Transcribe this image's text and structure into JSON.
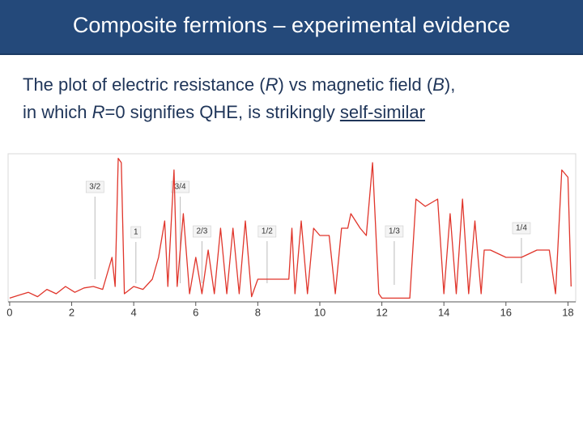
{
  "header": {
    "title": "Composite fermions – experimental evidence"
  },
  "body": {
    "lines": [
      [
        {
          "text": "The plot of electric resistance ("
        },
        {
          "text": "R",
          "italic": true
        },
        {
          "text": ") vs magnetic field ("
        },
        {
          "text": "B",
          "italic": true
        },
        {
          "text": "),"
        }
      ],
      [
        {
          "text": "in which "
        },
        {
          "text": "R",
          "italic": true
        },
        {
          "text": "=0 signifies QHE, is strikingly "
        },
        {
          "text": "self-similar",
          "underline": true
        }
      ]
    ]
  },
  "chart_data": {
    "type": "line",
    "x": [
      0,
      0.3,
      0.6,
      0.9,
      1.2,
      1.5,
      1.8,
      2.1,
      2.4,
      2.7,
      3.0,
      3.3,
      3.4,
      3.5,
      3.6,
      3.7,
      4.0,
      4.3,
      4.6,
      4.8,
      5.0,
      5.1,
      5.3,
      5.4,
      5.6,
      5.8,
      6.0,
      6.2,
      6.4,
      6.6,
      6.8,
      7.0,
      7.2,
      7.4,
      7.6,
      7.8,
      8.0,
      8.5,
      9.0,
      9.1,
      9.2,
      9.4,
      9.6,
      9.8,
      10.0,
      10.3,
      10.5,
      10.7,
      10.9,
      11.0,
      11.3,
      11.5,
      11.7,
      11.9,
      12.0,
      12.5,
      12.9,
      13.1,
      13.4,
      13.8,
      14.0,
      14.2,
      14.4,
      14.6,
      14.8,
      15.0,
      15.2,
      15.3,
      15.5,
      16.0,
      16.5,
      17.0,
      17.4,
      17.6,
      17.8,
      18.0,
      18.1
    ],
    "series": [
      {
        "color": "#e0352b",
        "values": [
          0.02,
          0.04,
          0.06,
          0.03,
          0.08,
          0.05,
          0.1,
          0.06,
          0.09,
          0.1,
          0.08,
          0.3,
          0.1,
          0.98,
          0.95,
          0.05,
          0.1,
          0.08,
          0.15,
          0.3,
          0.55,
          0.1,
          0.9,
          0.1,
          0.6,
          0.05,
          0.3,
          0.05,
          0.35,
          0.05,
          0.5,
          0.05,
          0.5,
          0.05,
          0.55,
          0.03,
          0.15,
          0.15,
          0.15,
          0.5,
          0.05,
          0.55,
          0.05,
          0.5,
          0.45,
          0.45,
          0.05,
          0.5,
          0.5,
          0.6,
          0.5,
          0.45,
          0.95,
          0.05,
          0.02,
          0.02,
          0.02,
          0.7,
          0.65,
          0.7,
          0.05,
          0.6,
          0.05,
          0.7,
          0.05,
          0.55,
          0.05,
          0.35,
          0.35,
          0.3,
          0.3,
          0.35,
          0.35,
          0.05,
          0.9,
          0.85,
          0.1
        ]
      }
    ],
    "xlim": [
      -0.05,
      18.25
    ],
    "ylim": [
      0,
      1
    ],
    "xticks": [
      0,
      2,
      4,
      6,
      8,
      10,
      12,
      14,
      16,
      18
    ],
    "annotations": [
      {
        "text": "3/2",
        "x": 2.75
      },
      {
        "text": "3/4",
        "x": 5.5
      },
      {
        "text": "1",
        "x": 4.07
      },
      {
        "text": "2/3",
        "x": 6.2
      },
      {
        "text": "1/2",
        "x": 8.3
      },
      {
        "text": "1/3",
        "x": 12.4
      },
      {
        "text": "1/4",
        "x": 16.5
      }
    ]
  }
}
